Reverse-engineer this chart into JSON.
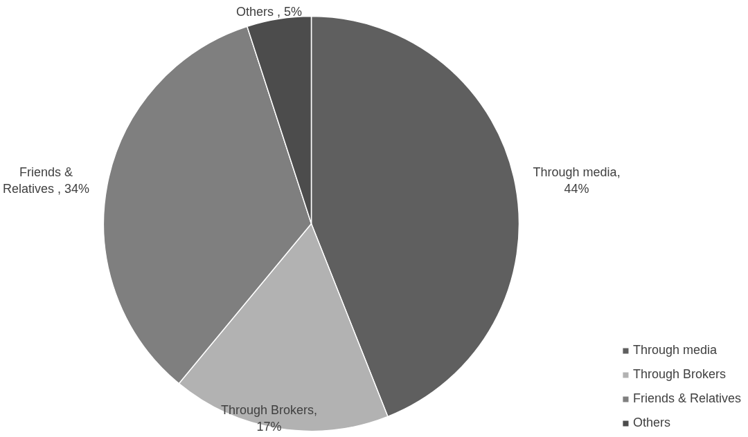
{
  "chart_data": {
    "type": "pie",
    "categories": [
      "Through media",
      "Through Brokers",
      "Friends & Relatives",
      "Others"
    ],
    "values": [
      44,
      17,
      34,
      5
    ],
    "colors": [
      "#5f5f5f",
      "#b2b2b2",
      "#7f7f7f",
      "#4c4c4c"
    ],
    "value_labels": [
      "Through media, 44%",
      "Through Brokers, 17%",
      "Friends & Relatives , 34%",
      "Others , 5%"
    ],
    "legend": "bottom right"
  }
}
